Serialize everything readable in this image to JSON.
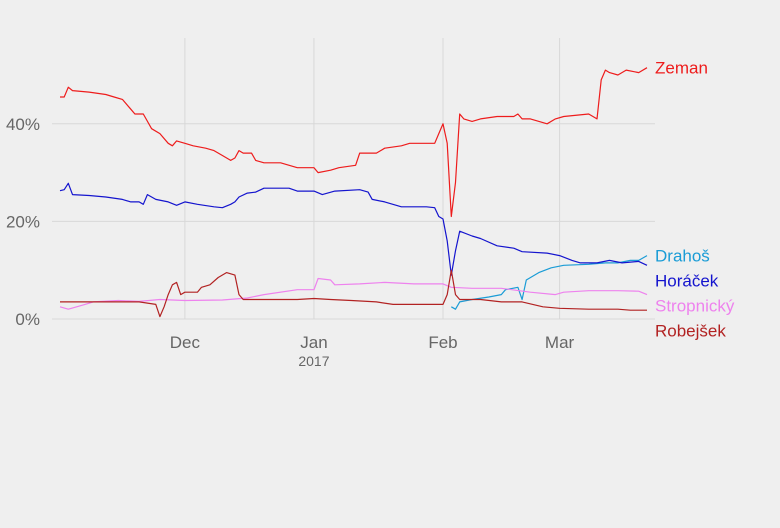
{
  "chart_data": {
    "type": "line",
    "title": "",
    "xlabel": "",
    "ylabel": "",
    "x_range": [
      "2016-11-01",
      "2017-03-22"
    ],
    "ylim": [
      0,
      56
    ],
    "y_ticks": [
      {
        "value": 0,
        "label": "0%"
      },
      {
        "value": 20,
        "label": "20%"
      },
      {
        "value": 40,
        "label": "40%"
      }
    ],
    "x_ticks": [
      {
        "date": "2016-12-01",
        "label": "Dec"
      },
      {
        "date": "2017-01-01",
        "label": "Jan",
        "sublabel": "2017"
      },
      {
        "date": "2017-02-01",
        "label": "Feb"
      },
      {
        "date": "2017-03-01",
        "label": "Mar"
      }
    ],
    "grid": true,
    "legend": "direct labels at right end of lines",
    "series": [
      {
        "name": "Zeman",
        "color": "#ee1c1c",
        "points": [
          [
            "2016-11-01",
            45.5
          ],
          [
            "2016-11-02",
            45.5
          ],
          [
            "2016-11-03",
            47.5
          ],
          [
            "2016-11-04",
            46.8
          ],
          [
            "2016-11-08",
            46.5
          ],
          [
            "2016-11-12",
            46.0
          ],
          [
            "2016-11-14",
            45.5
          ],
          [
            "2016-11-16",
            45.0
          ],
          [
            "2016-11-18",
            43.0
          ],
          [
            "2016-11-19",
            42.0
          ],
          [
            "2016-11-21",
            42.0
          ],
          [
            "2016-11-23",
            39.0
          ],
          [
            "2016-11-25",
            38.0
          ],
          [
            "2016-11-27",
            36.0
          ],
          [
            "2016-11-28",
            35.5
          ],
          [
            "2016-11-29",
            36.5
          ],
          [
            "2016-12-01",
            36.0
          ],
          [
            "2016-12-03",
            35.5
          ],
          [
            "2016-12-06",
            35.0
          ],
          [
            "2016-12-08",
            34.5
          ],
          [
            "2016-12-10",
            33.5
          ],
          [
            "2016-12-12",
            32.5
          ],
          [
            "2016-12-13",
            33.0
          ],
          [
            "2016-12-14",
            34.5
          ],
          [
            "2016-12-15",
            34.0
          ],
          [
            "2016-12-17",
            34.0
          ],
          [
            "2016-12-18",
            32.5
          ],
          [
            "2016-12-20",
            32.0
          ],
          [
            "2016-12-24",
            32.0
          ],
          [
            "2016-12-28",
            31.0
          ],
          [
            "2017-01-01",
            31.0
          ],
          [
            "2017-01-02",
            30.0
          ],
          [
            "2017-01-05",
            30.5
          ],
          [
            "2017-01-07",
            31.0
          ],
          [
            "2017-01-11",
            31.5
          ],
          [
            "2017-01-12",
            34.0
          ],
          [
            "2017-01-16",
            34.0
          ],
          [
            "2017-01-18",
            35.0
          ],
          [
            "2017-01-22",
            35.5
          ],
          [
            "2017-01-24",
            36.0
          ],
          [
            "2017-01-30",
            36.0
          ],
          [
            "2017-01-31",
            38.0
          ],
          [
            "2017-02-01",
            40.0
          ],
          [
            "2017-02-02",
            36.0
          ],
          [
            "2017-02-03",
            21.0
          ],
          [
            "2017-02-04",
            28.0
          ],
          [
            "2017-02-05",
            42.0
          ],
          [
            "2017-02-06",
            41.0
          ],
          [
            "2017-02-08",
            40.5
          ],
          [
            "2017-02-10",
            41.0
          ],
          [
            "2017-02-14",
            41.5
          ],
          [
            "2017-02-18",
            41.5
          ],
          [
            "2017-02-19",
            42.0
          ],
          [
            "2017-02-20",
            41.0
          ],
          [
            "2017-02-22",
            41.0
          ],
          [
            "2017-02-26",
            40.0
          ],
          [
            "2017-02-28",
            41.0
          ],
          [
            "2017-03-02",
            41.5
          ],
          [
            "2017-03-08",
            42.0
          ],
          [
            "2017-03-10",
            41.0
          ],
          [
            "2017-03-11",
            49.0
          ],
          [
            "2017-03-12",
            51.0
          ],
          [
            "2017-03-13",
            50.5
          ],
          [
            "2017-03-15",
            50.0
          ],
          [
            "2017-03-17",
            51.0
          ],
          [
            "2017-03-20",
            50.5
          ],
          [
            "2017-03-22",
            51.5
          ]
        ]
      },
      {
        "name": "Drahoš",
        "color": "#1a9cd6",
        "points": [
          [
            "2017-02-03",
            2.5
          ],
          [
            "2017-02-04",
            2.0
          ],
          [
            "2017-02-05",
            3.5
          ],
          [
            "2017-02-08",
            4.0
          ],
          [
            "2017-02-12",
            4.5
          ],
          [
            "2017-02-15",
            5.0
          ],
          [
            "2017-02-16",
            6.0
          ],
          [
            "2017-02-19",
            6.5
          ],
          [
            "2017-02-20",
            4.0
          ],
          [
            "2017-02-21",
            8.0
          ],
          [
            "2017-02-24",
            9.5
          ],
          [
            "2017-02-27",
            10.5
          ],
          [
            "2017-03-02",
            11.0
          ],
          [
            "2017-03-08",
            11.2
          ],
          [
            "2017-03-12",
            11.5
          ],
          [
            "2017-03-15",
            11.5
          ],
          [
            "2017-03-18",
            12.0
          ],
          [
            "2017-03-20",
            12.0
          ],
          [
            "2017-03-22",
            13.0
          ]
        ]
      },
      {
        "name": "Horáček",
        "color": "#1414ce",
        "points": [
          [
            "2016-11-01",
            26.3
          ],
          [
            "2016-11-02",
            26.5
          ],
          [
            "2016-11-03",
            27.8
          ],
          [
            "2016-11-04",
            25.5
          ],
          [
            "2016-11-08",
            25.3
          ],
          [
            "2016-11-12",
            25.0
          ],
          [
            "2016-11-16",
            24.5
          ],
          [
            "2016-11-18",
            24.0
          ],
          [
            "2016-11-20",
            24.0
          ],
          [
            "2016-11-21",
            23.5
          ],
          [
            "2016-11-22",
            25.5
          ],
          [
            "2016-11-24",
            24.5
          ],
          [
            "2016-11-27",
            24.0
          ],
          [
            "2016-11-29",
            23.3
          ],
          [
            "2016-12-01",
            24.0
          ],
          [
            "2016-12-04",
            23.5
          ],
          [
            "2016-12-08",
            23.0
          ],
          [
            "2016-12-10",
            22.8
          ],
          [
            "2016-12-12",
            23.5
          ],
          [
            "2016-12-13",
            24.0
          ],
          [
            "2016-12-14",
            25.0
          ],
          [
            "2016-12-16",
            25.8
          ],
          [
            "2016-12-18",
            26.0
          ],
          [
            "2016-12-20",
            26.8
          ],
          [
            "2016-12-26",
            26.8
          ],
          [
            "2016-12-28",
            26.2
          ],
          [
            "2017-01-01",
            26.2
          ],
          [
            "2017-01-03",
            25.5
          ],
          [
            "2017-01-06",
            26.2
          ],
          [
            "2017-01-12",
            26.5
          ],
          [
            "2017-01-14",
            26.0
          ],
          [
            "2017-01-15",
            24.5
          ],
          [
            "2017-01-18",
            24.0
          ],
          [
            "2017-01-22",
            23.0
          ],
          [
            "2017-01-28",
            23.0
          ],
          [
            "2017-01-30",
            22.8
          ],
          [
            "2017-01-31",
            21.0
          ],
          [
            "2017-02-01",
            20.5
          ],
          [
            "2017-02-02",
            16.0
          ],
          [
            "2017-02-03",
            9.0
          ],
          [
            "2017-02-04",
            14.0
          ],
          [
            "2017-02-05",
            18.0
          ],
          [
            "2017-02-08",
            17.0
          ],
          [
            "2017-02-10",
            16.5
          ],
          [
            "2017-02-14",
            15.0
          ],
          [
            "2017-02-18",
            14.5
          ],
          [
            "2017-02-20",
            13.8
          ],
          [
            "2017-02-26",
            13.5
          ],
          [
            "2017-03-01",
            13.0
          ],
          [
            "2017-03-04",
            12.0
          ],
          [
            "2017-03-06",
            11.5
          ],
          [
            "2017-03-10",
            11.5
          ],
          [
            "2017-03-13",
            12.0
          ],
          [
            "2017-03-16",
            11.5
          ],
          [
            "2017-03-20",
            11.8
          ],
          [
            "2017-03-22",
            11.0
          ]
        ]
      },
      {
        "name": "Stropnický",
        "color": "#ee82ee",
        "points": [
          [
            "2016-11-01",
            2.5
          ],
          [
            "2016-11-03",
            2.0
          ],
          [
            "2016-11-05",
            2.5
          ],
          [
            "2016-11-07",
            3.0
          ],
          [
            "2016-11-09",
            3.5
          ],
          [
            "2016-11-15",
            3.8
          ],
          [
            "2016-11-20",
            3.6
          ],
          [
            "2016-11-25",
            4.0
          ],
          [
            "2016-12-01",
            3.8
          ],
          [
            "2016-12-10",
            3.9
          ],
          [
            "2016-12-16",
            4.3
          ],
          [
            "2016-12-20",
            5.0
          ],
          [
            "2016-12-28",
            6.0
          ],
          [
            "2017-01-01",
            6.0
          ],
          [
            "2017-01-02",
            8.3
          ],
          [
            "2017-01-05",
            8.0
          ],
          [
            "2017-01-06",
            7.0
          ],
          [
            "2017-01-12",
            7.2
          ],
          [
            "2017-01-18",
            7.5
          ],
          [
            "2017-01-25",
            7.2
          ],
          [
            "2017-02-01",
            7.2
          ],
          [
            "2017-02-03",
            6.5
          ],
          [
            "2017-02-08",
            6.3
          ],
          [
            "2017-02-15",
            6.3
          ],
          [
            "2017-02-22",
            5.5
          ],
          [
            "2017-02-28",
            5.0
          ],
          [
            "2017-03-02",
            5.5
          ],
          [
            "2017-03-08",
            5.8
          ],
          [
            "2017-03-15",
            5.8
          ],
          [
            "2017-03-20",
            5.7
          ],
          [
            "2017-03-22",
            5.0
          ]
        ]
      },
      {
        "name": "Robejšek",
        "color": "#b22222",
        "points": [
          [
            "2016-11-01",
            3.5
          ],
          [
            "2016-11-10",
            3.5
          ],
          [
            "2016-11-20",
            3.5
          ],
          [
            "2016-11-24",
            3.0
          ],
          [
            "2016-11-25",
            0.5
          ],
          [
            "2016-11-26",
            2.5
          ],
          [
            "2016-11-27",
            5.0
          ],
          [
            "2016-11-28",
            7.0
          ],
          [
            "2016-11-29",
            7.5
          ],
          [
            "2016-11-30",
            5.0
          ],
          [
            "2016-12-01",
            5.5
          ],
          [
            "2016-12-04",
            5.5
          ],
          [
            "2016-12-05",
            6.5
          ],
          [
            "2016-12-07",
            7.0
          ],
          [
            "2016-12-09",
            8.5
          ],
          [
            "2016-12-11",
            9.5
          ],
          [
            "2016-12-13",
            9.0
          ],
          [
            "2016-12-14",
            5.0
          ],
          [
            "2016-12-15",
            4.0
          ],
          [
            "2016-12-20",
            4.0
          ],
          [
            "2016-12-28",
            4.0
          ],
          [
            "2017-01-01",
            4.2
          ],
          [
            "2017-01-05",
            4.0
          ],
          [
            "2017-01-10",
            3.8
          ],
          [
            "2017-01-16",
            3.5
          ],
          [
            "2017-01-20",
            3.0
          ],
          [
            "2017-01-28",
            3.0
          ],
          [
            "2017-02-01",
            3.0
          ],
          [
            "2017-02-02",
            5.0
          ],
          [
            "2017-02-03",
            10.0
          ],
          [
            "2017-02-04",
            5.0
          ],
          [
            "2017-02-05",
            4.0
          ],
          [
            "2017-02-10",
            4.0
          ],
          [
            "2017-02-15",
            3.5
          ],
          [
            "2017-02-20",
            3.5
          ],
          [
            "2017-02-25",
            2.5
          ],
          [
            "2017-03-01",
            2.2
          ],
          [
            "2017-03-08",
            2.0
          ],
          [
            "2017-03-15",
            2.0
          ],
          [
            "2017-03-18",
            1.8
          ],
          [
            "2017-03-22",
            1.8
          ]
        ]
      }
    ]
  }
}
